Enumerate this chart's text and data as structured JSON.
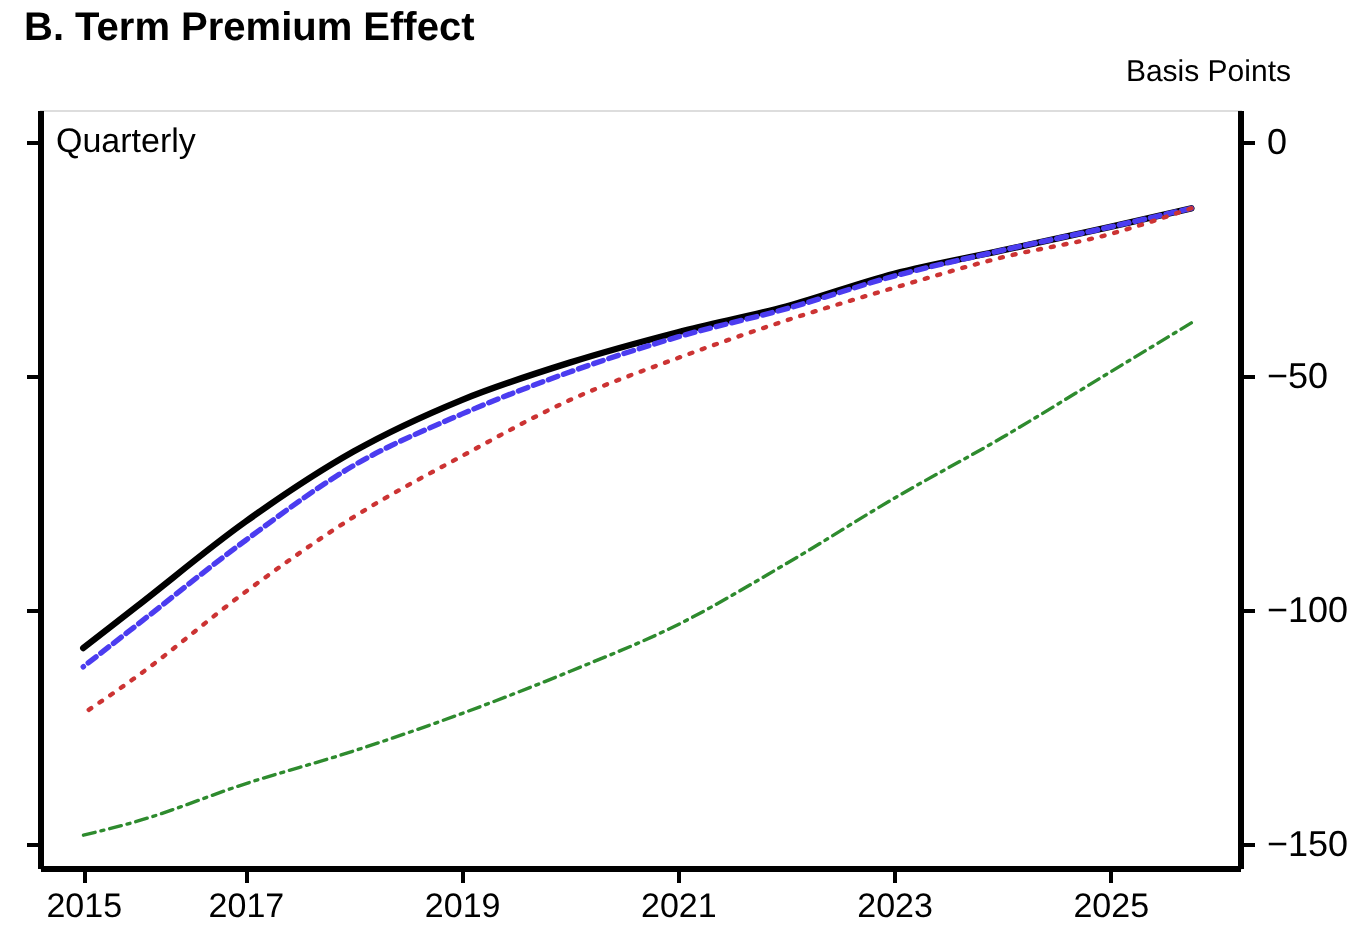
{
  "chart_data": {
    "type": "line",
    "title": "B. Term Premium Effect",
    "ylabel": "Basis Points",
    "annotations": [
      "Quarterly"
    ],
    "x": [
      2015.5,
      2016,
      2017,
      2018,
      2019,
      2020,
      2021,
      2022,
      2023,
      2024,
      2025,
      2025.75
    ],
    "series": [
      {
        "color": "#000000",
        "line_style": "solid",
        "values": [
          -108,
          -99,
          -81,
          -66,
          -55,
          -47,
          -40.5,
          -35,
          -28,
          -23,
          -18,
          -14
        ]
      },
      {
        "color": "#4b3cf0",
        "line_style": "dashed",
        "values": [
          -112,
          -103,
          -85,
          -69,
          -58,
          -49,
          -41.5,
          -35.5,
          -28.5,
          -23,
          -18,
          -14
        ]
      },
      {
        "color": "#cc3333",
        "line_style": "dotted",
        "values": [
          -122,
          -114,
          -96,
          -80,
          -67,
          -55,
          -46,
          -38,
          -31,
          -24.5,
          -19.5,
          -14
        ]
      },
      {
        "color": "#2e8b2e",
        "line_style": "dashdot",
        "values": [
          -148,
          -145,
          -137,
          -130,
          -122,
          -113,
          -103,
          -90,
          -76,
          -63,
          -49,
          -38.5
        ]
      }
    ],
    "xlim": [
      2015.1,
      2026.2
    ],
    "xticks": [
      {
        "value": 2015.5,
        "label": "2015"
      },
      2017,
      2019,
      2021,
      2023,
      2025
    ],
    "ylim": [
      -155,
      7
    ],
    "yticks": [
      0,
      -50,
      -100,
      -150
    ],
    "grid": false,
    "marker": "none"
  }
}
